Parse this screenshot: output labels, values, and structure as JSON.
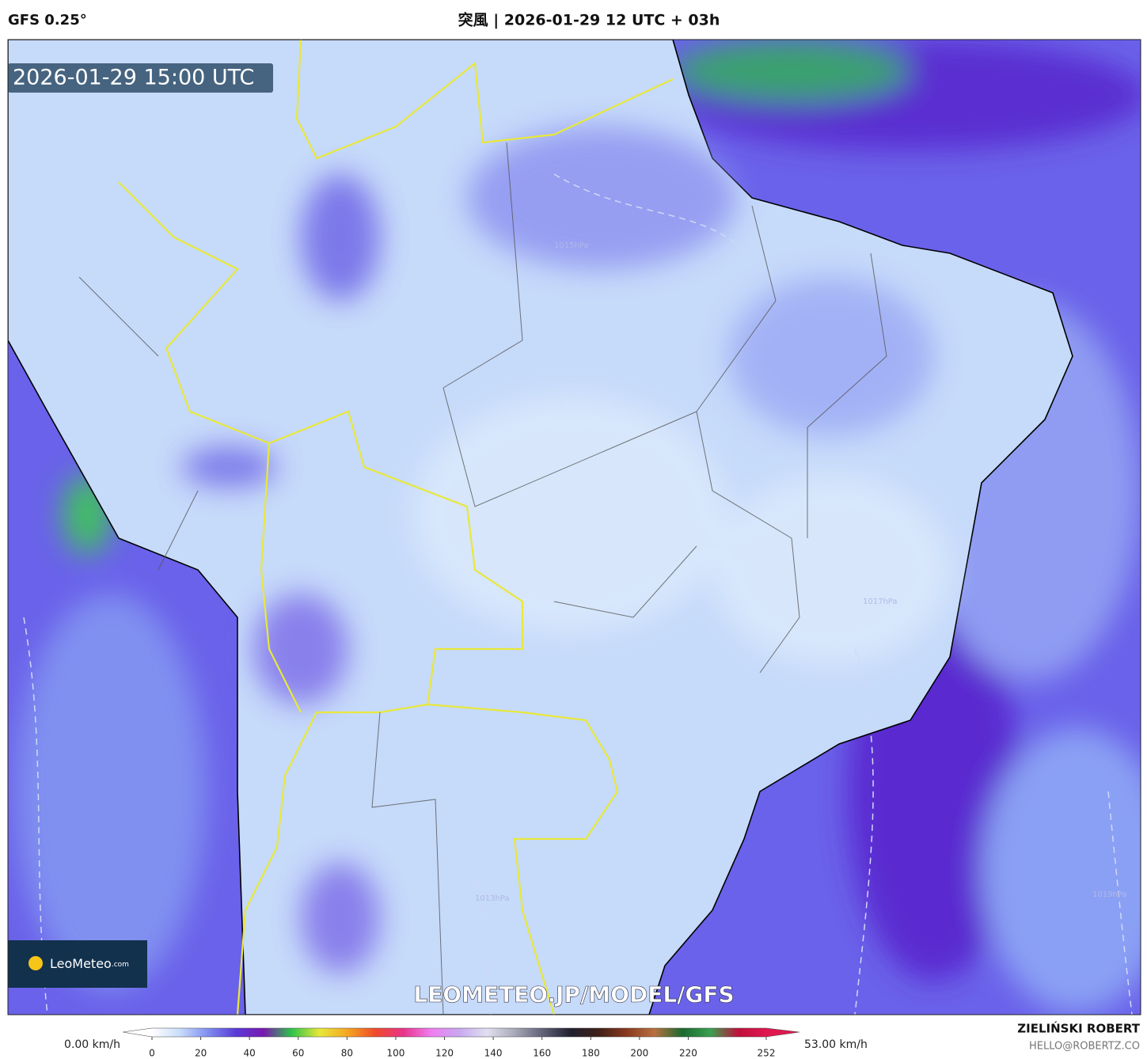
{
  "header": {
    "model": "GFS 0.25°",
    "title": "突風 | 2026-01-29 12 UTC + 03h"
  },
  "map": {
    "valid_time": "2026-01-29 15:00 UTC",
    "watermark": "LEOMETEO.JP/MODEL/GFS",
    "logo": {
      "name": "LeoMeteo",
      "suffix": ".com"
    },
    "isobar_labels": [
      "1015hPa",
      "1013hPa",
      "1017hPa",
      "1019hPa"
    ]
  },
  "legend": {
    "min_label": "0.00 km/h",
    "max_label": "53.00 km/h",
    "range": [
      0,
      252
    ],
    "ticks": [
      0,
      20,
      40,
      60,
      80,
      100,
      120,
      140,
      160,
      180,
      200,
      220,
      252
    ],
    "colors": [
      "#ffffff",
      "#c9dcfb",
      "#7f8ff0",
      "#5a3ad8",
      "#7a18b0",
      "#2dc44a",
      "#e8e83a",
      "#f5a623",
      "#f04a2a",
      "#e8338a",
      "#f07ef0",
      "#c8a8f0",
      "#e0e0f0",
      "#a8a8b8",
      "#606078",
      "#202030",
      "#402018",
      "#8a3a20",
      "#b87040",
      "#1a6a30",
      "#3aa050",
      "#c0103a",
      "#e01850"
    ]
  },
  "footer": {
    "author": "ZIELIŃSKI ROBERT",
    "contact": "HELLO@ROBERTZ.CO"
  }
}
